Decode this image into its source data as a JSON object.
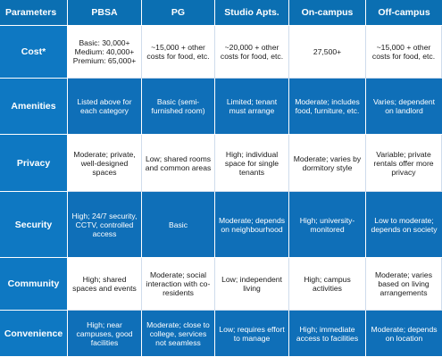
{
  "table": {
    "columns": [
      "Parameters",
      "PBSA",
      "PG",
      "Studio Apts.",
      "On-campus",
      "Off-campus"
    ],
    "rows": [
      {
        "label": "Cost*",
        "style": "light",
        "cells": [
          "Basic: 30,000+\nMedium: 40,000+\nPremium: 65,000+",
          "~15,000 + other costs for food, etc.",
          "~20,000 + other costs for food, etc.",
          "27,500+",
          "~15,000 + other costs for food, etc."
        ]
      },
      {
        "label": "Amenities",
        "style": "blue",
        "cells": [
          "Listed above for each category",
          "Basic (semi-furnished room)",
          "Limited; tenant must arrange",
          "Moderate; includes food, furniture, etc.",
          "Varies; dependent on landlord"
        ]
      },
      {
        "label": "Privacy",
        "style": "light",
        "cells": [
          "Moderate; private, well-designed spaces",
          "Low; shared rooms and common areas",
          "High; individual space for single tenants",
          "Moderate; varies by dormitory style",
          "Variable; private rentals offer more privacy"
        ]
      },
      {
        "label": "Security",
        "style": "blue",
        "cells": [
          "High; 24/7 security, CCTV, controlled access",
          "Basic",
          "Moderate; depends on neighbourhood",
          "High; university-monitored",
          "Low to moderate; depends on society"
        ]
      },
      {
        "label": "Community",
        "style": "light",
        "cells": [
          "High; shared spaces and events",
          "Moderate; social interaction with co-residents",
          "Low; independent living",
          "High; campus activities",
          "Moderate; varies based on living arrangements"
        ]
      },
      {
        "label": "Convenience",
        "style": "blue",
        "cells": [
          "High; near campuses, good facilities",
          "Moderate; close to college, services not seamless",
          "Low; requires effort to manage",
          "High; immediate access to facilities",
          "Moderate; depends on location"
        ]
      }
    ]
  },
  "colors": {
    "header_bg": "#0b6fb2",
    "row_label_bg": "#0e78c2",
    "blue_row_bg": "#0f6fb8",
    "light_row_bg": "#ffffff"
  }
}
